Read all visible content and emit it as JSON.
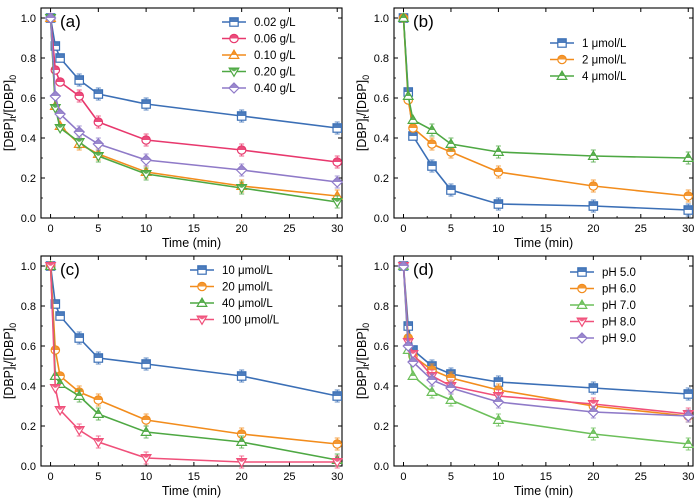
{
  "chart_data": [
    {
      "type": "line",
      "panel_label": "(a)",
      "xlabel": "Time (min)",
      "ylabel": "[DBP]t/[DBP]0",
      "xlim": [
        -1,
        30.5
      ],
      "ylim": [
        0,
        1.05
      ],
      "xticks": [
        0,
        5,
        10,
        15,
        20,
        25,
        30
      ],
      "yticks": [
        0.0,
        0.2,
        0.4,
        0.6,
        0.8,
        1.0
      ],
      "legend_position": "top-right",
      "x": [
        0,
        0.5,
        1,
        3,
        5,
        10,
        20,
        30
      ],
      "series": [
        {
          "name": "0.02 g/L",
          "color": "#3b6fb6",
          "marker": "square",
          "values": [
            1.0,
            0.86,
            0.8,
            0.69,
            0.62,
            0.57,
            0.51,
            0.45
          ]
        },
        {
          "name": "0.06 g/L",
          "color": "#e8386d",
          "marker": "circle",
          "values": [
            1.0,
            0.74,
            0.68,
            0.61,
            0.48,
            0.39,
            0.34,
            0.28
          ]
        },
        {
          "name": "0.10 g/L",
          "color": "#f28c1c",
          "marker": "triangle-up",
          "values": [
            1.0,
            0.56,
            0.46,
            0.37,
            0.32,
            0.23,
            0.16,
            0.11
          ]
        },
        {
          "name": "0.20 g/L",
          "color": "#4ea843",
          "marker": "triangle-down",
          "values": [
            1.0,
            0.55,
            0.45,
            0.38,
            0.31,
            0.22,
            0.15,
            0.08
          ]
        },
        {
          "name": "0.40 g/L",
          "color": "#8f7ac8",
          "marker": "diamond",
          "values": [
            1.0,
            0.61,
            0.52,
            0.43,
            0.37,
            0.29,
            0.24,
            0.18
          ]
        }
      ]
    },
    {
      "type": "line",
      "panel_label": "(b)",
      "xlabel": "Time (min)",
      "ylabel": "[DBP]t/[DBP]0",
      "xlim": [
        -1,
        30.5
      ],
      "ylim": [
        0,
        1.05
      ],
      "xticks": [
        0,
        5,
        10,
        15,
        20,
        25,
        30
      ],
      "yticks": [
        0.0,
        0.2,
        0.4,
        0.6,
        0.8,
        1.0
      ],
      "legend_position": "top-right",
      "x": [
        0,
        0.5,
        1,
        3,
        5,
        10,
        20,
        30
      ],
      "series": [
        {
          "name": "1 μmol/L",
          "color": "#3b6fb6",
          "marker": "square",
          "values": [
            1.0,
            0.63,
            0.41,
            0.26,
            0.14,
            0.07,
            0.06,
            0.04
          ]
        },
        {
          "name": "2 μmol/L",
          "color": "#f28c1c",
          "marker": "circle",
          "values": [
            1.0,
            0.59,
            0.45,
            0.37,
            0.33,
            0.23,
            0.16,
            0.11
          ]
        },
        {
          "name": "4 μmol/L",
          "color": "#4ea843",
          "marker": "triangle-up",
          "values": [
            1.0,
            0.61,
            0.49,
            0.44,
            0.37,
            0.33,
            0.31,
            0.3
          ]
        }
      ]
    },
    {
      "type": "line",
      "panel_label": "(c)",
      "xlabel": "Time (min)",
      "ylabel": "[DBP]t/[DBP]0",
      "xlim": [
        -1,
        30.5
      ],
      "ylim": [
        0,
        1.05
      ],
      "xticks": [
        0,
        5,
        10,
        15,
        20,
        25,
        30
      ],
      "yticks": [
        0.0,
        0.2,
        0.4,
        0.6,
        0.8,
        1.0
      ],
      "legend_position": "top-right",
      "x": [
        0,
        0.5,
        1,
        3,
        5,
        10,
        20,
        30
      ],
      "series": [
        {
          "name": "10 μmol/L",
          "color": "#3b6fb6",
          "marker": "square",
          "values": [
            1.0,
            0.81,
            0.75,
            0.64,
            0.54,
            0.51,
            0.45,
            0.35
          ]
        },
        {
          "name": "20 μmol/L",
          "color": "#f28c1c",
          "marker": "circle",
          "values": [
            1.0,
            0.58,
            0.45,
            0.37,
            0.33,
            0.23,
            0.16,
            0.11
          ]
        },
        {
          "name": "40 μmol/L",
          "color": "#4ea843",
          "marker": "triangle-up",
          "values": [
            1.0,
            0.45,
            0.41,
            0.35,
            0.26,
            0.17,
            0.12,
            0.03
          ]
        },
        {
          "name": "100 μmol/L",
          "color": "#f0507a",
          "marker": "triangle-down",
          "values": [
            1.0,
            0.39,
            0.28,
            0.18,
            0.12,
            0.04,
            0.02,
            0.02
          ]
        }
      ]
    },
    {
      "type": "line",
      "panel_label": "(d)",
      "xlabel": "Time (min)",
      "ylabel": "[DBP]t/[DBP]0",
      "xlim": [
        -1,
        30.5
      ],
      "ylim": [
        0,
        1.05
      ],
      "xticks": [
        0,
        5,
        10,
        15,
        20,
        25,
        30
      ],
      "yticks": [
        0.0,
        0.2,
        0.4,
        0.6,
        0.8,
        1.0
      ],
      "legend_position": "top-right",
      "x": [
        0,
        0.5,
        1,
        3,
        5,
        10,
        20,
        30
      ],
      "series": [
        {
          "name": "pH 5.0",
          "color": "#3b6fb6",
          "marker": "square",
          "values": [
            1.0,
            0.7,
            0.58,
            0.5,
            0.46,
            0.42,
            0.39,
            0.36
          ]
        },
        {
          "name": "pH 6.0",
          "color": "#f28c1c",
          "marker": "circle",
          "values": [
            1.0,
            0.64,
            0.55,
            0.48,
            0.44,
            0.38,
            0.3,
            0.25
          ]
        },
        {
          "name": "pH 7.0",
          "color": "#6cbf5a",
          "marker": "triangle-up",
          "values": [
            1.0,
            0.58,
            0.45,
            0.37,
            0.33,
            0.23,
            0.16,
            0.11
          ]
        },
        {
          "name": "pH 8.0",
          "color": "#f0507a",
          "marker": "triangle-down",
          "values": [
            1.0,
            0.62,
            0.56,
            0.45,
            0.4,
            0.35,
            0.31,
            0.26
          ]
        },
        {
          "name": "pH 9.0",
          "color": "#8f7ac8",
          "marker": "diamond",
          "values": [
            1.0,
            0.6,
            0.52,
            0.43,
            0.39,
            0.32,
            0.27,
            0.25
          ]
        }
      ]
    }
  ]
}
